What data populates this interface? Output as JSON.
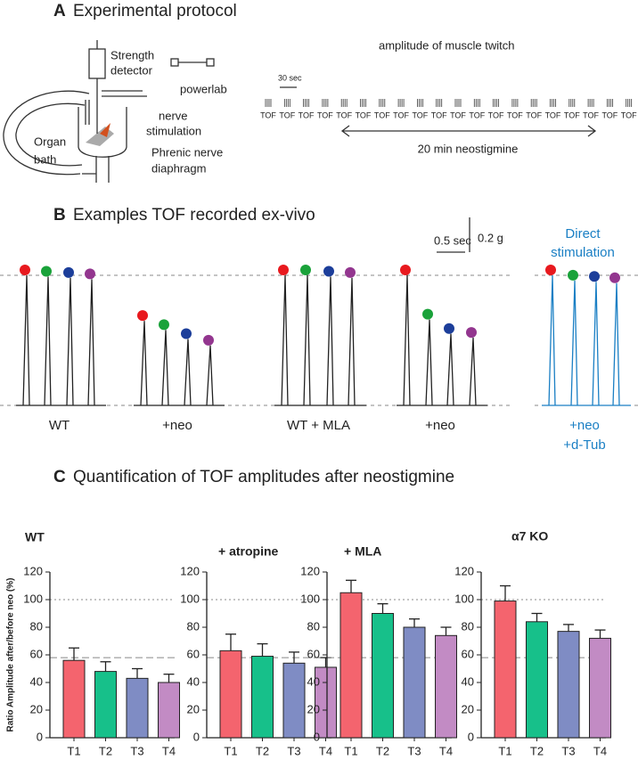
{
  "panel_a": {
    "letter": "A",
    "title": "Experimental protocol",
    "strength_detector": [
      "Strength",
      "detector"
    ],
    "powerlab": "powerlab",
    "nerve_stimulation": [
      "nerve",
      "stimulation"
    ],
    "organ_bath": [
      "Organ",
      "bath"
    ],
    "phrenic": [
      "Phrenic nerve",
      "diaphragm"
    ],
    "timeline_title": "amplitude of muscle twitch",
    "scale_label": "30 sec",
    "tof_label": "TOF",
    "neostigmine": "20 min neostigmine"
  },
  "panel_b": {
    "letter": "B",
    "title": "Examples TOF recorded ex-vivo",
    "time_scale": "0.5 sec",
    "force_scale": "0.2 g",
    "direct_stimulation": [
      "Direct",
      "stimulation"
    ],
    "traces": [
      {
        "label": [
          "WT"
        ],
        "peaks": [
          1,
          0.99,
          0.98,
          0.97
        ]
      },
      {
        "label": [
          "+neo"
        ],
        "peaks": [
          0.65,
          0.58,
          0.51,
          0.46
        ]
      },
      {
        "label": [
          "WT + MLA"
        ],
        "peaks": [
          1,
          1,
          0.99,
          0.98
        ]
      },
      {
        "label": [
          "+neo"
        ],
        "peaks": [
          1,
          0.66,
          0.55,
          0.52
        ]
      },
      {
        "label": [
          "+neo",
          "+d-Tub"
        ],
        "peaks": [
          1,
          0.96,
          0.95,
          0.94
        ],
        "color": "#1a7fc4"
      }
    ]
  },
  "panel_c": {
    "letter": "C",
    "title": "Quantification of TOF amplitudes after neostigmine",
    "y_label": "Ratio Amplitude after/before neo (%)"
  },
  "chart_data": [
    {
      "type": "bar",
      "title": "WT",
      "categories": [
        "T1",
        "T2",
        "T3",
        "T4"
      ],
      "values": [
        56,
        48,
        43,
        40
      ],
      "errors": [
        9,
        7,
        7,
        6
      ],
      "colors": [
        "#f4646e",
        "#17c08a",
        "#7f8cc4",
        "#c28bc4"
      ],
      "ylim": [
        0,
        120
      ],
      "yticks": [
        0,
        20,
        40,
        60,
        80,
        100,
        120
      ],
      "reference_lines": [
        100,
        58
      ]
    },
    {
      "type": "bar",
      "title": "+ atropine",
      "categories": [
        "T1",
        "T2",
        "T3",
        "T4"
      ],
      "values": [
        63,
        59,
        54,
        51
      ],
      "errors": [
        12,
        9,
        8,
        7
      ],
      "colors": [
        "#f4646e",
        "#17c08a",
        "#7f8cc4",
        "#c28bc4"
      ],
      "ylim": [
        0,
        120
      ],
      "yticks": [
        0,
        20,
        40,
        60,
        80,
        100,
        120
      ],
      "reference_lines": [
        100,
        58
      ]
    },
    {
      "type": "bar",
      "title": "+ MLA",
      "categories": [
        "T1",
        "T2",
        "T3",
        "T4"
      ],
      "values": [
        105,
        90,
        80,
        74
      ],
      "errors": [
        9,
        7,
        6,
        6
      ],
      "colors": [
        "#f4646e",
        "#17c08a",
        "#7f8cc4",
        "#c28bc4"
      ],
      "ylim": [
        0,
        120
      ],
      "yticks": [
        0,
        20,
        40,
        60,
        80,
        100,
        120
      ],
      "reference_lines": [
        100,
        58
      ]
    },
    {
      "type": "bar",
      "title": "α7 KO",
      "categories": [
        "T1",
        "T2",
        "T3",
        "T4"
      ],
      "values": [
        99,
        84,
        77,
        72
      ],
      "errors": [
        11,
        6,
        5,
        6
      ],
      "colors": [
        "#f4646e",
        "#17c08a",
        "#7f8cc4",
        "#c28bc4"
      ],
      "ylim": [
        0,
        120
      ],
      "yticks": [
        0,
        20,
        40,
        60,
        80,
        100,
        120
      ],
      "reference_lines": [
        100,
        58
      ]
    }
  ]
}
